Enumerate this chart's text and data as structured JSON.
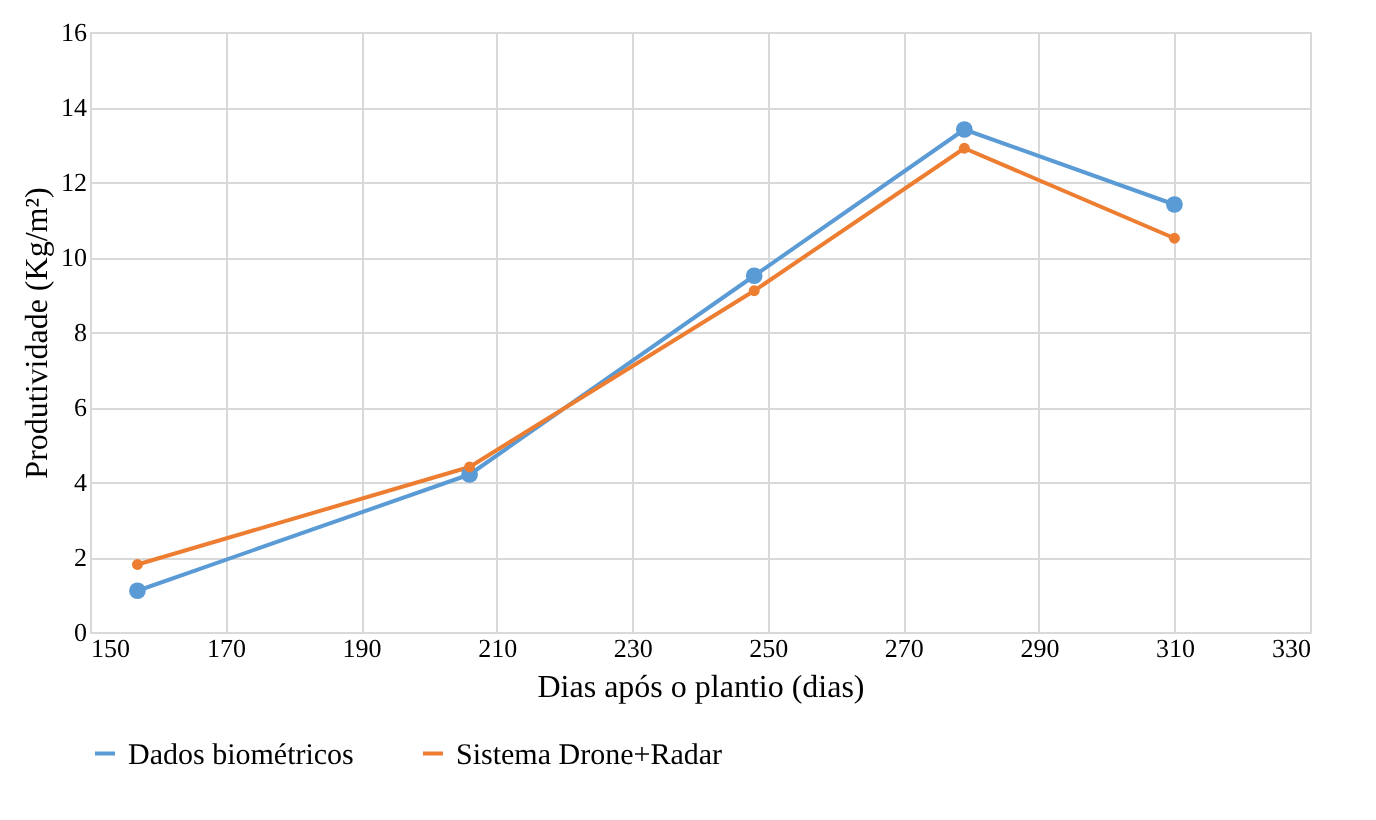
{
  "chart_data": {
    "type": "line",
    "xlabel": "Dias após o plantio (dias)",
    "ylabel": "Produtividade (Kg/m²)",
    "x": [
      157,
      206,
      248,
      279,
      310
    ],
    "series": [
      {
        "name": "Dados biométricos",
        "color": "#5b9bd5",
        "values": [
          1.1,
          4.2,
          9.5,
          13.4,
          11.4
        ]
      },
      {
        "name": "Sistema Drone+Radar",
        "color": "#ed7d31",
        "values": [
          1.8,
          4.4,
          9.1,
          12.9,
          10.5
        ]
      }
    ],
    "xlim": [
      150,
      330
    ],
    "xticks": [
      150,
      170,
      190,
      210,
      230,
      250,
      270,
      290,
      310,
      330
    ],
    "ylim": [
      0,
      16
    ],
    "yticks": [
      0,
      2,
      4,
      6,
      8,
      10,
      12,
      14,
      16
    ],
    "grid": true,
    "legend": "bottom",
    "marker": "circle",
    "line_style": "solid"
  }
}
